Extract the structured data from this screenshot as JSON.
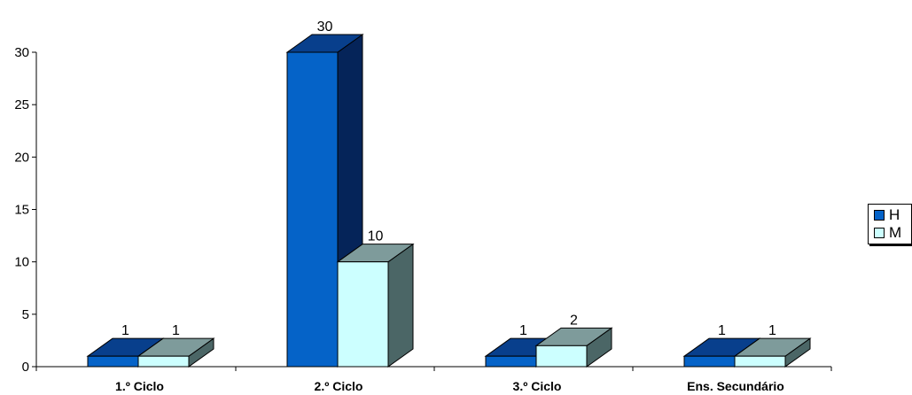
{
  "chart_data": {
    "type": "bar",
    "categories": [
      "1.º Ciclo",
      "2.º Ciclo",
      "3.º Ciclo",
      "Ens. Secundário"
    ],
    "series": [
      {
        "name": "H",
        "values": [
          1,
          30,
          1,
          1
        ]
      },
      {
        "name": "M",
        "values": [
          1,
          10,
          2,
          1
        ]
      }
    ],
    "ylim": [
      0,
      30
    ],
    "yticks": [
      0,
      5,
      10,
      15,
      20,
      25,
      30
    ],
    "grid": false,
    "legend": "right",
    "colors": {
      "H": {
        "front": "#0563C8",
        "top": "#083F8C",
        "side": "#052459"
      },
      "M": {
        "front": "#CCFFFF",
        "top": "#7E9B9B",
        "side": "#4B6666"
      }
    }
  },
  "legend": {
    "items": [
      {
        "label": "H",
        "color": "#0563C8"
      },
      {
        "label": "M",
        "color": "#CCFFFF"
      }
    ]
  }
}
